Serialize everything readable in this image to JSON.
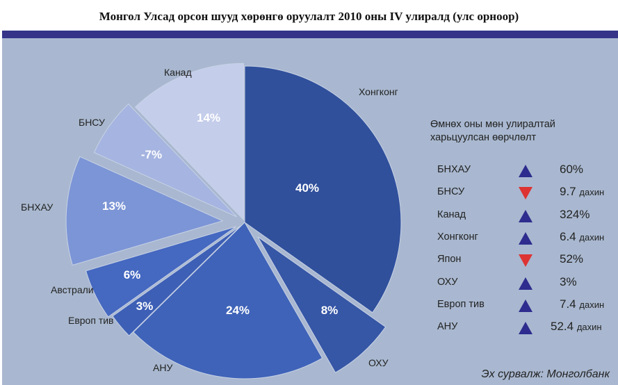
{
  "title": "Монгол Улсад орсон шууд хөрөнгө оруулалт 2010 оны IV улиралд (улс орноор)",
  "colors": {
    "bar": "#353489",
    "background": "#a9b8d0",
    "up": "#2e2c8e",
    "down": "#dd3333"
  },
  "chart_data": {
    "type": "pie",
    "title": "Монгол Улсад орсон шууд хөрөнгө оруулалт 2010 оны IV улиралд (улс орноор)",
    "slices": [
      {
        "label": "Хонгконг",
        "value": 40,
        "text": "40%",
        "color": "#30509c"
      },
      {
        "label": "ОХУ",
        "value": 8,
        "text": "8%",
        "color": "#3656a6"
      },
      {
        "label": "АНУ",
        "value": 24,
        "text": "24%",
        "color": "#3f63b8"
      },
      {
        "label": "Европ тив",
        "value": 3,
        "text": "3%",
        "color": "#3d5fb5"
      },
      {
        "label": "Австрали",
        "value": 6,
        "text": "6%",
        "color": "#4568c0"
      },
      {
        "label": "БНХАУ",
        "value": 13,
        "text": "13%",
        "color": "#7c95d6"
      },
      {
        "label": "БНСУ",
        "value": -7,
        "text": "-7%",
        "color": "#a5b4e0"
      },
      {
        "label": "Канад",
        "value": 14,
        "text": "14%",
        "color": "#c4cdea"
      }
    ],
    "legend_placement": "outside labels"
  },
  "change": {
    "title_line1": "Өмнөх оны мөн улиралтай",
    "title_line2": "харьцуулсан өөрчлөлт",
    "rows": [
      {
        "country": "БНХАУ",
        "direction": "up",
        "value": "60%",
        "unit": ""
      },
      {
        "country": "БНСУ",
        "direction": "down",
        "value": "9.7",
        "unit": "дахин"
      },
      {
        "country": "Канад",
        "direction": "up",
        "value": "324%",
        "unit": ""
      },
      {
        "country": "Хонгконг",
        "direction": "up",
        "value": "6.4",
        "unit": "дахин"
      },
      {
        "country": "Япон",
        "direction": "down",
        "value": "52%",
        "unit": ""
      },
      {
        "country": "ОХУ",
        "direction": "up",
        "value": "3%",
        "unit": ""
      },
      {
        "country": "Европ тив",
        "direction": "up",
        "value": "7.4",
        "unit": "дахин"
      },
      {
        "country": "АНУ",
        "direction": "up",
        "value": "52.4",
        "unit": "дахин"
      }
    ]
  },
  "source": "Эх сурвалж: Монголбанк"
}
